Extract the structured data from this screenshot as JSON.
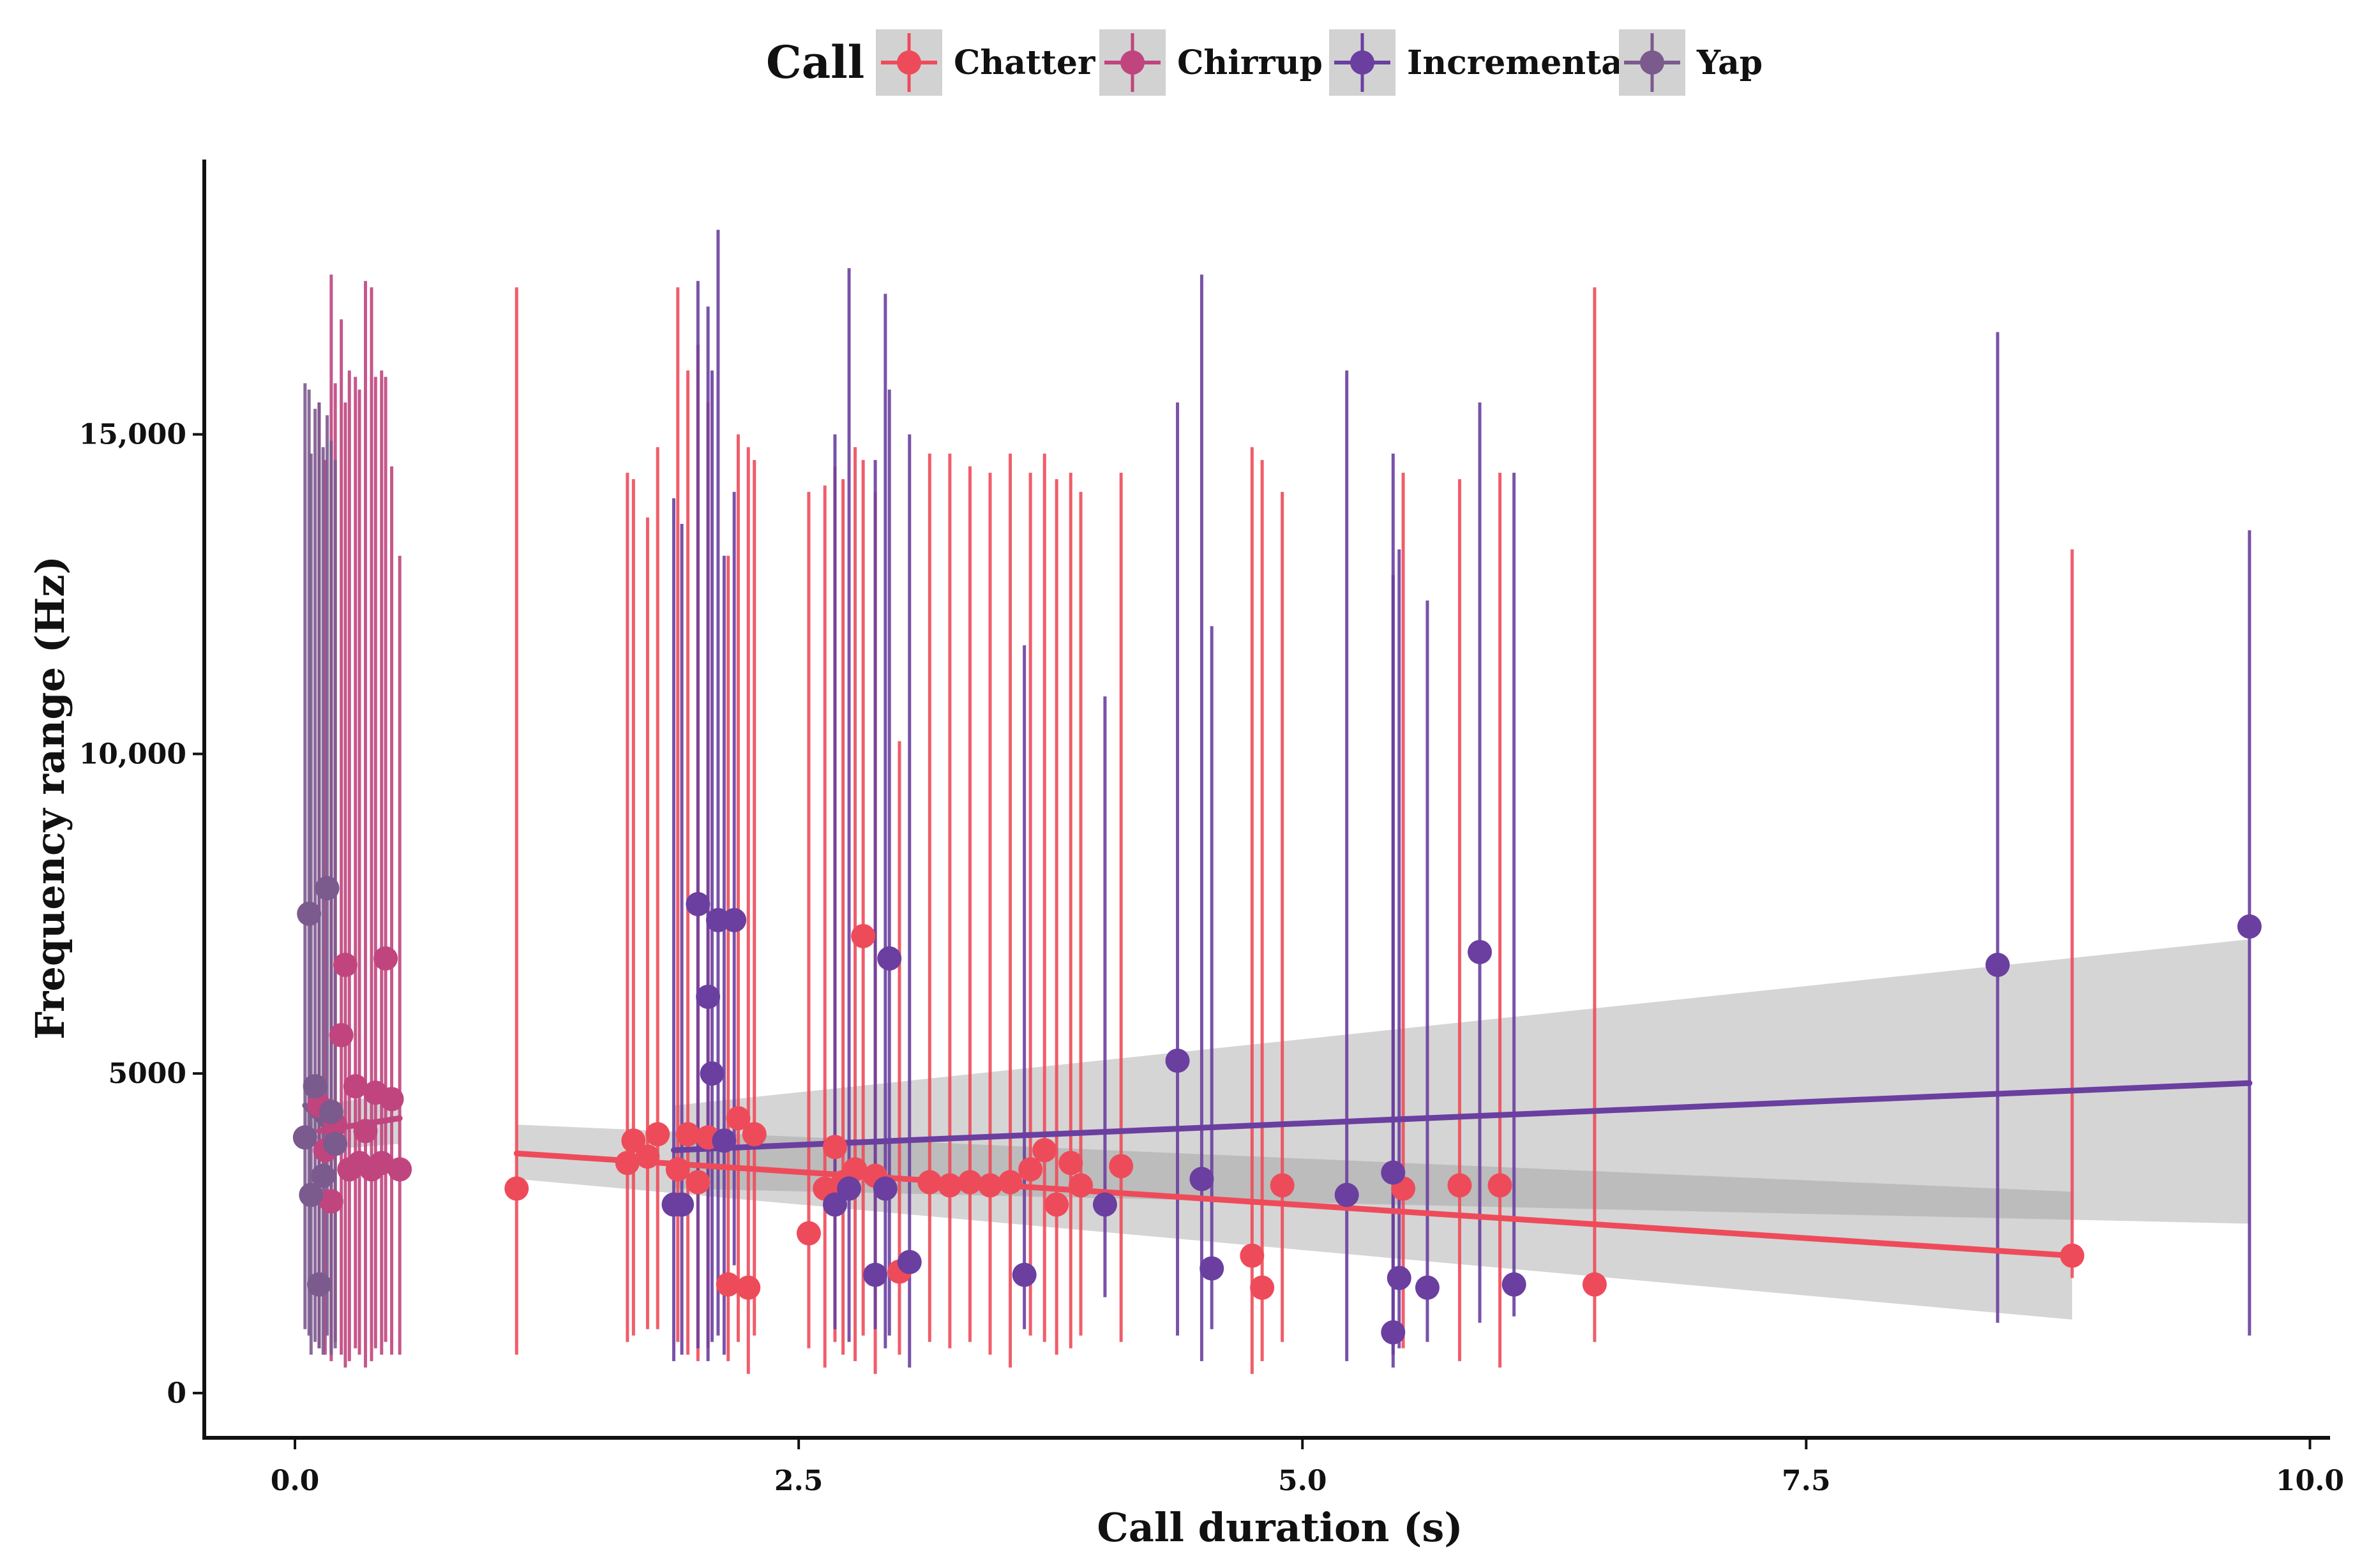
{
  "chart_data": {
    "type": "scatter",
    "title": "",
    "xlabel": "Call duration (s)",
    "ylabel": "Frequency range (Hz)",
    "xlim": [
      -0.45,
      10.1
    ],
    "ylim": [
      -700,
      19300
    ],
    "xticks": [
      0,
      2.5,
      5,
      7.5,
      10
    ],
    "xtick_labels": [
      "0.0",
      "2.5",
      "5.0",
      "7.5",
      "10.0"
    ],
    "yticks": [
      0,
      5000,
      10000,
      15000
    ],
    "ytick_labels": [
      "0",
      "5000",
      "10,000",
      "15,000"
    ],
    "grid": false,
    "legend": {
      "title": "Call",
      "position": "top",
      "entries": [
        "Chatter",
        "Chirrup",
        "Incremental",
        "Yap"
      ]
    },
    "series": [
      {
        "name": "Chatter",
        "color": "#ee4b5a",
        "points": [
          {
            "x": 1.1,
            "y": 3200,
            "ymin": 600,
            "ymax": 17300
          },
          {
            "x": 1.65,
            "y": 3600,
            "ymin": 800,
            "ymax": 14400
          },
          {
            "x": 1.68,
            "y": 3950,
            "ymin": 900,
            "ymax": 14300
          },
          {
            "x": 1.75,
            "y": 3700,
            "ymin": 1000,
            "ymax": 13700
          },
          {
            "x": 1.8,
            "y": 4050,
            "ymin": 1000,
            "ymax": 14800
          },
          {
            "x": 1.9,
            "y": 3500,
            "ymin": 800,
            "ymax": 17300
          },
          {
            "x": 1.95,
            "y": 4050,
            "ymin": 600,
            "ymax": 16000
          },
          {
            "x": 2.0,
            "y": 3300,
            "ymin": 500,
            "ymax": 16400
          },
          {
            "x": 2.05,
            "y": 4000,
            "ymin": 700,
            "ymax": 15500
          },
          {
            "x": 2.15,
            "y": 1700,
            "ymin": 500,
            "ymax": 13100
          },
          {
            "x": 2.2,
            "y": 4300,
            "ymin": 800,
            "ymax": 15000
          },
          {
            "x": 2.25,
            "y": 1650,
            "ymin": 300,
            "ymax": 14800
          },
          {
            "x": 2.28,
            "y": 4050,
            "ymin": 900,
            "ymax": 14600
          },
          {
            "x": 2.55,
            "y": 2500,
            "ymin": 700,
            "ymax": 14100
          },
          {
            "x": 2.63,
            "y": 3200,
            "ymin": 400,
            "ymax": 14200
          },
          {
            "x": 2.68,
            "y": 3850,
            "ymin": 800,
            "ymax": 14500
          },
          {
            "x": 2.72,
            "y": 3300,
            "ymin": 600,
            "ymax": 14300
          },
          {
            "x": 2.78,
            "y": 3500,
            "ymin": 500,
            "ymax": 14800
          },
          {
            "x": 2.82,
            "y": 7150,
            "ymin": 900,
            "ymax": 14600
          },
          {
            "x": 2.88,
            "y": 3400,
            "ymin": 300,
            "ymax": 14100
          },
          {
            "x": 3.0,
            "y": 1900,
            "ymin": 600,
            "ymax": 10200
          },
          {
            "x": 3.15,
            "y": 3300,
            "ymin": 800,
            "ymax": 14700
          },
          {
            "x": 3.25,
            "y": 3250,
            "ymin": 700,
            "ymax": 14700
          },
          {
            "x": 3.35,
            "y": 3300,
            "ymin": 800,
            "ymax": 14500
          },
          {
            "x": 3.45,
            "y": 3250,
            "ymin": 600,
            "ymax": 14400
          },
          {
            "x": 3.55,
            "y": 3300,
            "ymin": 400,
            "ymax": 14700
          },
          {
            "x": 3.65,
            "y": 3500,
            "ymin": 900,
            "ymax": 14400
          },
          {
            "x": 3.72,
            "y": 3800,
            "ymin": 800,
            "ymax": 14700
          },
          {
            "x": 3.78,
            "y": 2950,
            "ymin": 600,
            "ymax": 14300
          },
          {
            "x": 3.85,
            "y": 3600,
            "ymin": 700,
            "ymax": 14400
          },
          {
            "x": 3.9,
            "y": 3250,
            "ymin": 900,
            "ymax": 14100
          },
          {
            "x": 4.1,
            "y": 3550,
            "ymin": 800,
            "ymax": 14400
          },
          {
            "x": 4.75,
            "y": 2150,
            "ymin": 300,
            "ymax": 14800
          },
          {
            "x": 4.8,
            "y": 1650,
            "ymin": 500,
            "ymax": 14600
          },
          {
            "x": 4.9,
            "y": 3250,
            "ymin": 800,
            "ymax": 14100
          },
          {
            "x": 5.5,
            "y": 3200,
            "ymin": 700,
            "ymax": 14400
          },
          {
            "x": 5.78,
            "y": 3250,
            "ymin": 500,
            "ymax": 14300
          },
          {
            "x": 5.98,
            "y": 3250,
            "ymin": 400,
            "ymax": 14400
          },
          {
            "x": 6.45,
            "y": 1700,
            "ymin": 800,
            "ymax": 17300
          },
          {
            "x": 8.82,
            "y": 2150,
            "ymin": 1800,
            "ymax": 13200
          }
        ],
        "fit": {
          "x": [
            1.1,
            8.82
          ],
          "y": [
            3750,
            2150
          ],
          "band_low": [
            3350,
            1150
          ],
          "band_high": [
            4200,
            3150
          ]
        }
      },
      {
        "name": "Chirrup",
        "color": "#c0457e",
        "points": [
          {
            "x": 0.12,
            "y": 4500,
            "ymin": 700,
            "ymax": 15500
          },
          {
            "x": 0.15,
            "y": 3800,
            "ymin": 600,
            "ymax": 14600
          },
          {
            "x": 0.18,
            "y": 3000,
            "ymin": 500,
            "ymax": 17500
          },
          {
            "x": 0.2,
            "y": 4200,
            "ymin": 800,
            "ymax": 15800
          },
          {
            "x": 0.23,
            "y": 5600,
            "ymin": 600,
            "ymax": 16800
          },
          {
            "x": 0.25,
            "y": 6700,
            "ymin": 400,
            "ymax": 15500
          },
          {
            "x": 0.27,
            "y": 3500,
            "ymin": 500,
            "ymax": 16000
          },
          {
            "x": 0.3,
            "y": 4800,
            "ymin": 700,
            "ymax": 15900
          },
          {
            "x": 0.32,
            "y": 3600,
            "ymin": 600,
            "ymax": 15700
          },
          {
            "x": 0.35,
            "y": 4100,
            "ymin": 400,
            "ymax": 17400
          },
          {
            "x": 0.38,
            "y": 3500,
            "ymin": 500,
            "ymax": 17300
          },
          {
            "x": 0.4,
            "y": 4700,
            "ymin": 700,
            "ymax": 15900
          },
          {
            "x": 0.43,
            "y": 3600,
            "ymin": 600,
            "ymax": 16000
          },
          {
            "x": 0.45,
            "y": 6800,
            "ymin": 800,
            "ymax": 15900
          },
          {
            "x": 0.48,
            "y": 4600,
            "ymin": 600,
            "ymax": 14500
          },
          {
            "x": 0.52,
            "y": 3500,
            "ymin": 600,
            "ymax": 13100
          }
        ],
        "fit": {
          "x": [
            0.12,
            0.52
          ],
          "y": [
            4100,
            4300
          ],
          "band_low": [
            3800,
            3900
          ],
          "band_high": [
            4500,
            4700
          ]
        }
      },
      {
        "name": "Incremental",
        "color": "#6a3fa0",
        "points": [
          {
            "x": 1.88,
            "y": 2950,
            "ymin": 500,
            "ymax": 14000
          },
          {
            "x": 1.92,
            "y": 2950,
            "ymin": 600,
            "ymax": 13600
          },
          {
            "x": 2.0,
            "y": 7650,
            "ymin": 700,
            "ymax": 17400
          },
          {
            "x": 2.05,
            "y": 6200,
            "ymin": 500,
            "ymax": 17000
          },
          {
            "x": 2.07,
            "y": 5000,
            "ymin": 800,
            "ymax": 16000
          },
          {
            "x": 2.1,
            "y": 7400,
            "ymin": 900,
            "ymax": 18200
          },
          {
            "x": 2.13,
            "y": 3950,
            "ymin": 600,
            "ymax": 13100
          },
          {
            "x": 2.18,
            "y": 7400,
            "ymin": 2000,
            "ymax": 14100
          },
          {
            "x": 2.68,
            "y": 2950,
            "ymin": 1000,
            "ymax": 15000
          },
          {
            "x": 2.75,
            "y": 3200,
            "ymin": 800,
            "ymax": 17600
          },
          {
            "x": 2.88,
            "y": 1850,
            "ymin": 1000,
            "ymax": 14600
          },
          {
            "x": 2.93,
            "y": 3200,
            "ymin": 700,
            "ymax": 17200
          },
          {
            "x": 2.95,
            "y": 6800,
            "ymin": 900,
            "ymax": 15700
          },
          {
            "x": 3.05,
            "y": 2050,
            "ymin": 400,
            "ymax": 15000
          },
          {
            "x": 3.62,
            "y": 1850,
            "ymin": 1000,
            "ymax": 11700
          },
          {
            "x": 4.02,
            "y": 2950,
            "ymin": 1500,
            "ymax": 10900
          },
          {
            "x": 4.38,
            "y": 5200,
            "ymin": 900,
            "ymax": 15500
          },
          {
            "x": 4.5,
            "y": 3350,
            "ymin": 500,
            "ymax": 17500
          },
          {
            "x": 4.55,
            "y": 1950,
            "ymin": 1000,
            "ymax": 12000
          },
          {
            "x": 5.22,
            "y": 3100,
            "ymin": 500,
            "ymax": 16000
          },
          {
            "x": 5.45,
            "y": 3450,
            "ymin": 600,
            "ymax": 14700
          },
          {
            "x": 5.48,
            "y": 1800,
            "ymin": 700,
            "ymax": 13200
          },
          {
            "x": 5.45,
            "y": 950,
            "ymin": 400,
            "ymax": 12800
          },
          {
            "x": 5.62,
            "y": 1650,
            "ymin": 800,
            "ymax": 12400
          },
          {
            "x": 5.88,
            "y": 6900,
            "ymin": 1100,
            "ymax": 15500
          },
          {
            "x": 6.05,
            "y": 1700,
            "ymin": 1200,
            "ymax": 14400
          },
          {
            "x": 8.45,
            "y": 6700,
            "ymin": 1100,
            "ymax": 16600
          },
          {
            "x": 9.7,
            "y": 7300,
            "ymin": 900,
            "ymax": 13500
          }
        ],
        "fit": {
          "x": [
            1.88,
            9.7
          ],
          "y": [
            3800,
            4850
          ],
          "band_low": [
            3200,
            2650
          ],
          "band_high": [
            4500,
            7100
          ]
        }
      },
      {
        "name": "Yap",
        "color": "#7b5a8e",
        "points": [
          {
            "x": 0.05,
            "y": 4000,
            "ymin": 1000,
            "ymax": 15800
          },
          {
            "x": 0.07,
            "y": 7500,
            "ymin": 900,
            "ymax": 15700
          },
          {
            "x": 0.08,
            "y": 3100,
            "ymin": 600,
            "ymax": 14700
          },
          {
            "x": 0.1,
            "y": 4800,
            "ymin": 800,
            "ymax": 15400
          },
          {
            "x": 0.12,
            "y": 1700,
            "ymin": 700,
            "ymax": 15500
          },
          {
            "x": 0.14,
            "y": 3400,
            "ymin": 600,
            "ymax": 14800
          },
          {
            "x": 0.16,
            "y": 7900,
            "ymin": 900,
            "ymax": 15300
          },
          {
            "x": 0.18,
            "y": 4400,
            "ymin": 600,
            "ymax": 14900
          },
          {
            "x": 0.2,
            "y": 3900,
            "ymin": 700,
            "ymax": 14600
          }
        ],
        "fit": {
          "x": [
            0.05,
            0.2
          ],
          "y": [
            4500,
            4000
          ],
          "band_low": [
            4100,
            3600
          ],
          "band_high": [
            4900,
            4400
          ]
        }
      }
    ]
  }
}
